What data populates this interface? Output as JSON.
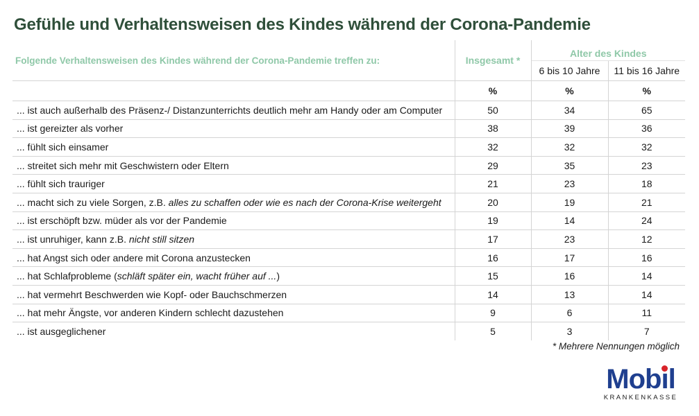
{
  "title": "Gefühle und Verhaltensweisen des Kindes während der Corona-Pandemie",
  "table": {
    "header_main": "Folgende Verhaltensweisen des Kindes während der Corona-Pandemie treffen zu:",
    "header_total": "Insgesamt *",
    "header_age_group": "Alter des Kindes",
    "header_age_1": "6 bis 10 Jahre",
    "header_age_2": "11 bis 16 Jahre",
    "unit": "%",
    "rows": [
      {
        "label": "... ist auch außerhalb des Präsenz-/ Distanzunterrichts deutlich mehr am Handy oder am Computer",
        "label_italic": "",
        "label_after": "",
        "total": "50",
        "age1": "34",
        "age2": "65"
      },
      {
        "label": "... ist gereizter als vorher",
        "label_italic": "",
        "label_after": "",
        "total": "38",
        "age1": "39",
        "age2": "36"
      },
      {
        "label": "... fühlt sich einsamer",
        "label_italic": "",
        "label_after": "",
        "total": "32",
        "age1": "32",
        "age2": "32"
      },
      {
        "label": "... streitet sich mehr mit Geschwistern oder Eltern",
        "label_italic": "",
        "label_after": "",
        "total": "29",
        "age1": "35",
        "age2": "23"
      },
      {
        "label": "... fühlt sich trauriger",
        "label_italic": "",
        "label_after": "",
        "total": "21",
        "age1": "23",
        "age2": "18"
      },
      {
        "label": "... macht sich zu viele Sorgen, z.B. ",
        "label_italic": "alles zu schaffen oder wie es nach der Corona-Krise weitergeht",
        "label_after": "",
        "total": "20",
        "age1": "19",
        "age2": "21"
      },
      {
        "label": "... ist erschöpft bzw. müder als vor der Pandemie",
        "label_italic": "",
        "label_after": "",
        "total": "19",
        "age1": "14",
        "age2": "24"
      },
      {
        "label": "... ist unruhiger, kann z.B. ",
        "label_italic": "nicht still sitzen",
        "label_after": "",
        "total": "17",
        "age1": "23",
        "age2": "12"
      },
      {
        "label": "... hat Angst sich oder andere mit Corona anzustecken",
        "label_italic": "",
        "label_after": "",
        "total": "16",
        "age1": "17",
        "age2": "16"
      },
      {
        "label": "... hat Schlafprobleme (",
        "label_italic": "schläft später ein, wacht früher auf ...",
        "label_after": ")",
        "total": "15",
        "age1": "16",
        "age2": "14"
      },
      {
        "label": "... hat vermehrt Beschwerden wie Kopf- oder Bauchschmerzen",
        "label_italic": "",
        "label_after": "",
        "total": "14",
        "age1": "13",
        "age2": "14"
      },
      {
        "label": "... hat mehr Ängste, vor anderen Kindern schlecht dazustehen",
        "label_italic": "",
        "label_after": "",
        "total": "9",
        "age1": "6",
        "age2": "11"
      },
      {
        "label": "... ist ausgeglichener",
        "label_italic": "",
        "label_after": "",
        "total": "5",
        "age1": "3",
        "age2": "7"
      }
    ]
  },
  "footnote": "* Mehrere Nennungen möglich",
  "logo": {
    "word_part1": "Mob",
    "word_i": "ı",
    "word_part2": "l",
    "sub": "KRANKENKASSE"
  },
  "colors": {
    "title": "#2f4f3a",
    "header_accent": "#8fc8a8",
    "logo_blue": "#1f3f8f",
    "logo_red": "#d8232a"
  }
}
